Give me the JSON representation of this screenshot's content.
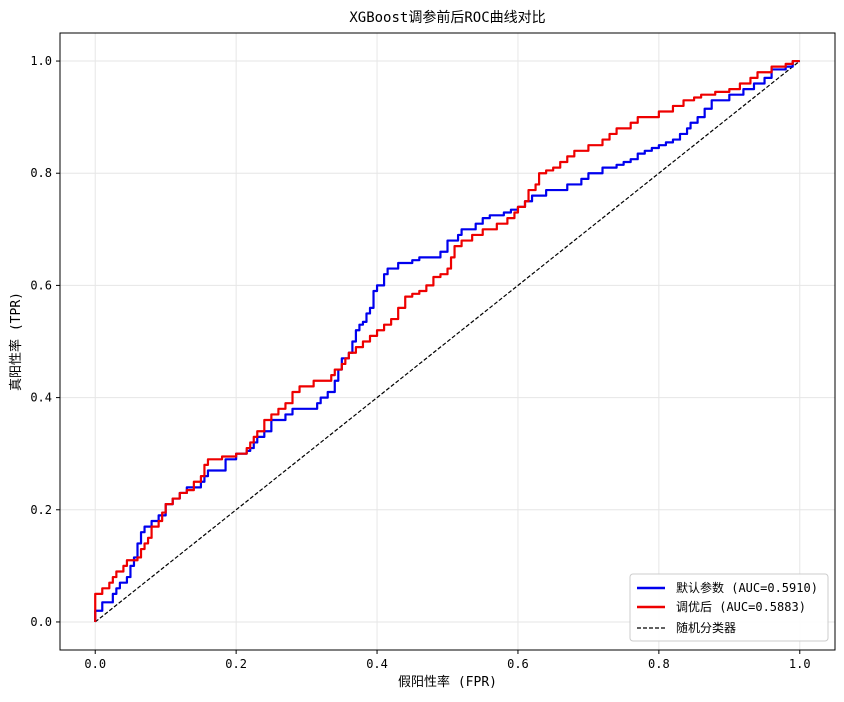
{
  "chart_data": {
    "type": "line",
    "title": "XGBoost调参前后ROC曲线对比",
    "xlabel": "假阳性率 (FPR)",
    "ylabel": "真阳性率 (TPR)",
    "xlim": [
      -0.05,
      1.05
    ],
    "ylim": [
      -0.05,
      1.05
    ],
    "xticks": [
      "0.0",
      "0.2",
      "0.4",
      "0.6",
      "0.8",
      "1.0"
    ],
    "yticks": [
      "0.0",
      "0.2",
      "0.4",
      "0.6",
      "0.8",
      "1.0"
    ],
    "grid": true,
    "legend_position": "lower-right",
    "series": [
      {
        "name": "默认参数 (AUC=0.5910)",
        "color": "#0000ee",
        "points": [
          [
            0.0,
            0.0
          ],
          [
            0.0,
            0.02
          ],
          [
            0.005,
            0.02
          ],
          [
            0.01,
            0.035
          ],
          [
            0.02,
            0.035
          ],
          [
            0.025,
            0.05
          ],
          [
            0.03,
            0.06
          ],
          [
            0.035,
            0.07
          ],
          [
            0.045,
            0.08
          ],
          [
            0.05,
            0.1
          ],
          [
            0.055,
            0.115
          ],
          [
            0.06,
            0.14
          ],
          [
            0.065,
            0.16
          ],
          [
            0.07,
            0.17
          ],
          [
            0.08,
            0.18
          ],
          [
            0.09,
            0.19
          ],
          [
            0.1,
            0.21
          ],
          [
            0.11,
            0.22
          ],
          [
            0.12,
            0.23
          ],
          [
            0.13,
            0.24
          ],
          [
            0.15,
            0.25
          ],
          [
            0.155,
            0.26
          ],
          [
            0.16,
            0.27
          ],
          [
            0.18,
            0.27
          ],
          [
            0.185,
            0.29
          ],
          [
            0.2,
            0.3
          ],
          [
            0.21,
            0.3
          ],
          [
            0.215,
            0.305
          ],
          [
            0.22,
            0.31
          ],
          [
            0.225,
            0.32
          ],
          [
            0.23,
            0.33
          ],
          [
            0.24,
            0.34
          ],
          [
            0.25,
            0.36
          ],
          [
            0.26,
            0.36
          ],
          [
            0.27,
            0.37
          ],
          [
            0.28,
            0.38
          ],
          [
            0.31,
            0.38
          ],
          [
            0.315,
            0.39
          ],
          [
            0.32,
            0.4
          ],
          [
            0.33,
            0.41
          ],
          [
            0.34,
            0.43
          ],
          [
            0.345,
            0.45
          ],
          [
            0.35,
            0.47
          ],
          [
            0.36,
            0.48
          ],
          [
            0.365,
            0.5
          ],
          [
            0.37,
            0.52
          ],
          [
            0.375,
            0.53
          ],
          [
            0.38,
            0.535
          ],
          [
            0.385,
            0.55
          ],
          [
            0.39,
            0.56
          ],
          [
            0.395,
            0.59
          ],
          [
            0.4,
            0.6
          ],
          [
            0.41,
            0.62
          ],
          [
            0.415,
            0.63
          ],
          [
            0.43,
            0.64
          ],
          [
            0.45,
            0.645
          ],
          [
            0.46,
            0.65
          ],
          [
            0.48,
            0.65
          ],
          [
            0.49,
            0.66
          ],
          [
            0.5,
            0.68
          ],
          [
            0.515,
            0.69
          ],
          [
            0.52,
            0.7
          ],
          [
            0.54,
            0.71
          ],
          [
            0.55,
            0.72
          ],
          [
            0.56,
            0.725
          ],
          [
            0.58,
            0.73
          ],
          [
            0.59,
            0.735
          ],
          [
            0.6,
            0.74
          ],
          [
            0.61,
            0.75
          ],
          [
            0.62,
            0.76
          ],
          [
            0.635,
            0.76
          ],
          [
            0.64,
            0.77
          ],
          [
            0.66,
            0.77
          ],
          [
            0.67,
            0.78
          ],
          [
            0.69,
            0.79
          ],
          [
            0.7,
            0.8
          ],
          [
            0.72,
            0.81
          ],
          [
            0.74,
            0.815
          ],
          [
            0.75,
            0.82
          ],
          [
            0.76,
            0.825
          ],
          [
            0.77,
            0.835
          ],
          [
            0.78,
            0.84
          ],
          [
            0.79,
            0.845
          ],
          [
            0.8,
            0.85
          ],
          [
            0.81,
            0.855
          ],
          [
            0.82,
            0.86
          ],
          [
            0.83,
            0.87
          ],
          [
            0.84,
            0.88
          ],
          [
            0.845,
            0.89
          ],
          [
            0.855,
            0.9
          ],
          [
            0.865,
            0.915
          ],
          [
            0.875,
            0.93
          ],
          [
            0.9,
            0.94
          ],
          [
            0.92,
            0.95
          ],
          [
            0.935,
            0.96
          ],
          [
            0.95,
            0.97
          ],
          [
            0.96,
            0.985
          ],
          [
            0.98,
            0.99
          ],
          [
            0.99,
            1.0
          ],
          [
            1.0,
            1.0
          ]
        ]
      },
      {
        "name": "调优后 (AUC=0.5883)",
        "color": "#ee0000",
        "points": [
          [
            0.0,
            0.0
          ],
          [
            0.0,
            0.05
          ],
          [
            0.01,
            0.06
          ],
          [
            0.02,
            0.07
          ],
          [
            0.025,
            0.08
          ],
          [
            0.03,
            0.09
          ],
          [
            0.04,
            0.1
          ],
          [
            0.045,
            0.11
          ],
          [
            0.06,
            0.115
          ],
          [
            0.065,
            0.13
          ],
          [
            0.07,
            0.14
          ],
          [
            0.075,
            0.15
          ],
          [
            0.08,
            0.17
          ],
          [
            0.09,
            0.18
          ],
          [
            0.095,
            0.195
          ],
          [
            0.1,
            0.21
          ],
          [
            0.11,
            0.22
          ],
          [
            0.12,
            0.23
          ],
          [
            0.13,
            0.235
          ],
          [
            0.14,
            0.25
          ],
          [
            0.15,
            0.26
          ],
          [
            0.155,
            0.28
          ],
          [
            0.16,
            0.29
          ],
          [
            0.18,
            0.295
          ],
          [
            0.2,
            0.3
          ],
          [
            0.215,
            0.31
          ],
          [
            0.22,
            0.32
          ],
          [
            0.225,
            0.33
          ],
          [
            0.23,
            0.34
          ],
          [
            0.24,
            0.36
          ],
          [
            0.25,
            0.37
          ],
          [
            0.26,
            0.38
          ],
          [
            0.27,
            0.39
          ],
          [
            0.28,
            0.41
          ],
          [
            0.29,
            0.42
          ],
          [
            0.31,
            0.43
          ],
          [
            0.33,
            0.43
          ],
          [
            0.335,
            0.44
          ],
          [
            0.34,
            0.45
          ],
          [
            0.35,
            0.46
          ],
          [
            0.355,
            0.47
          ],
          [
            0.36,
            0.48
          ],
          [
            0.37,
            0.49
          ],
          [
            0.38,
            0.5
          ],
          [
            0.39,
            0.51
          ],
          [
            0.4,
            0.52
          ],
          [
            0.41,
            0.53
          ],
          [
            0.42,
            0.54
          ],
          [
            0.43,
            0.56
          ],
          [
            0.44,
            0.58
          ],
          [
            0.45,
            0.585
          ],
          [
            0.46,
            0.59
          ],
          [
            0.47,
            0.6
          ],
          [
            0.48,
            0.615
          ],
          [
            0.49,
            0.62
          ],
          [
            0.5,
            0.63
          ],
          [
            0.505,
            0.65
          ],
          [
            0.51,
            0.67
          ],
          [
            0.52,
            0.68
          ],
          [
            0.535,
            0.69
          ],
          [
            0.55,
            0.7
          ],
          [
            0.57,
            0.71
          ],
          [
            0.585,
            0.72
          ],
          [
            0.595,
            0.73
          ],
          [
            0.6,
            0.74
          ],
          [
            0.61,
            0.75
          ],
          [
            0.615,
            0.77
          ],
          [
            0.625,
            0.78
          ],
          [
            0.63,
            0.8
          ],
          [
            0.64,
            0.805
          ],
          [
            0.65,
            0.81
          ],
          [
            0.66,
            0.82
          ],
          [
            0.67,
            0.83
          ],
          [
            0.68,
            0.84
          ],
          [
            0.7,
            0.85
          ],
          [
            0.72,
            0.86
          ],
          [
            0.73,
            0.87
          ],
          [
            0.74,
            0.88
          ],
          [
            0.76,
            0.89
          ],
          [
            0.77,
            0.9
          ],
          [
            0.8,
            0.91
          ],
          [
            0.82,
            0.92
          ],
          [
            0.835,
            0.93
          ],
          [
            0.85,
            0.935
          ],
          [
            0.86,
            0.94
          ],
          [
            0.88,
            0.945
          ],
          [
            0.9,
            0.95
          ],
          [
            0.915,
            0.96
          ],
          [
            0.93,
            0.97
          ],
          [
            0.94,
            0.98
          ],
          [
            0.96,
            0.99
          ],
          [
            0.98,
            0.995
          ],
          [
            0.99,
            1.0
          ],
          [
            1.0,
            1.0
          ]
        ]
      },
      {
        "name": "随机分类器",
        "color": "#000000",
        "dashed": true,
        "points": [
          [
            0.0,
            0.0
          ],
          [
            1.0,
            1.0
          ]
        ]
      }
    ]
  }
}
